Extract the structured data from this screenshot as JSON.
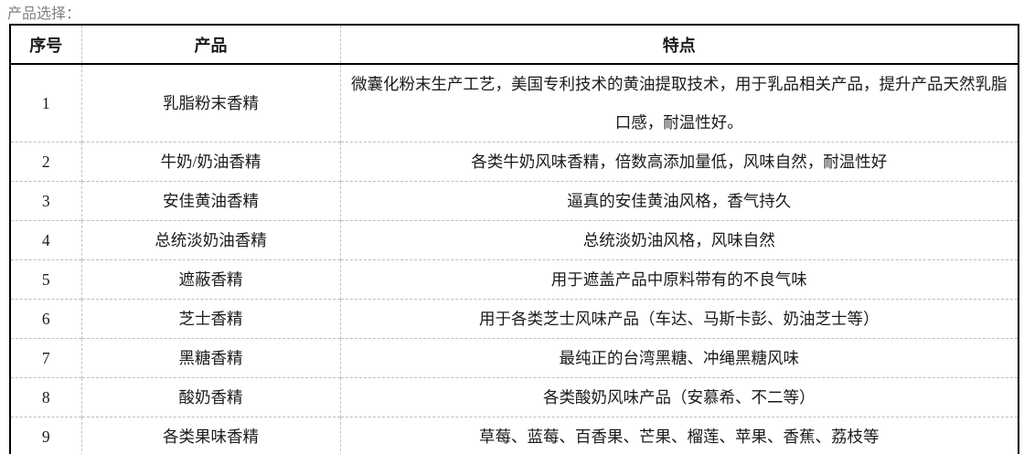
{
  "page": {
    "label": "产品选择："
  },
  "table": {
    "headers": [
      "序号",
      "产品",
      "特点"
    ],
    "rows": [
      {
        "no": "1",
        "product": "乳脂粉末香精",
        "features": "微囊化粉末生产工艺，美国专利技术的黄油提取技术，用于乳品相关产品，提升产品天然乳脂口感，耐温性好。"
      },
      {
        "no": "2",
        "product": "牛奶/奶油香精",
        "features": "各类牛奶风味香精，倍数高添加量低，风味自然，耐温性好"
      },
      {
        "no": "3",
        "product": "安佳黄油香精",
        "features": "逼真的安佳黄油风格，香气持久"
      },
      {
        "no": "4",
        "product": "总统淡奶油香精",
        "features": "总统淡奶油风格，风味自然"
      },
      {
        "no": "5",
        "product": "遮蔽香精",
        "features": "用于遮盖产品中原料带有的不良气味"
      },
      {
        "no": "6",
        "product": "芝士香精",
        "features": "用于各类芝士风味产品（车达、马斯卡彭、奶油芝士等）"
      },
      {
        "no": "7",
        "product": "黑糖香精",
        "features": "最纯正的台湾黑糖、冲绳黑糖风味"
      },
      {
        "no": "8",
        "product": "酸奶香精",
        "features": "各类酸奶风味产品（安慕希、不二等）"
      },
      {
        "no": "9",
        "product": "各类果味香精",
        "features": "草莓、蓝莓、百香果、芒果、榴莲、苹果、香蕉、荔枝等"
      }
    ]
  },
  "colors": {
    "text": "#1a1a1a",
    "label_text": "#808080",
    "outer_border": "#000000",
    "inner_divider": "#c3c3c3"
  }
}
